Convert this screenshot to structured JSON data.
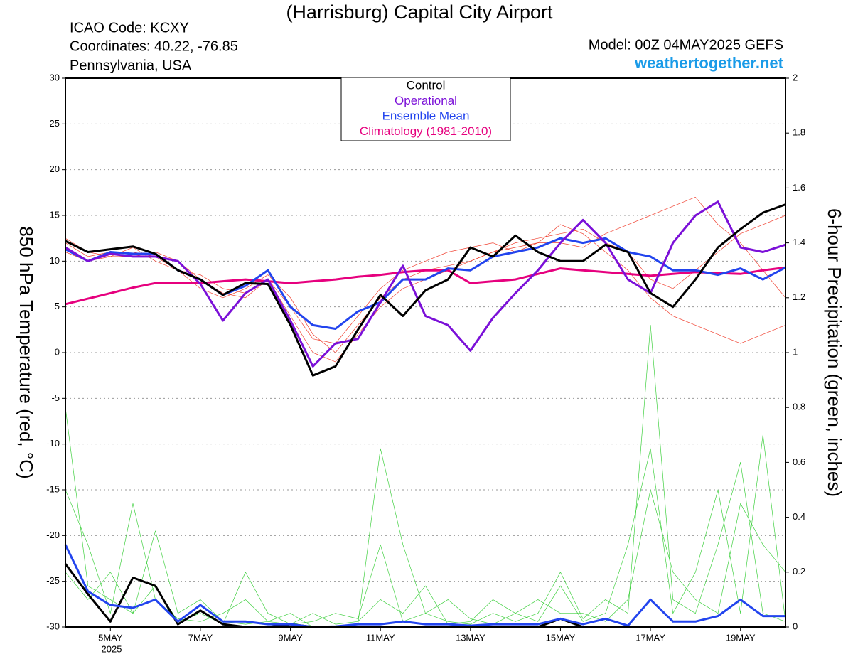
{
  "chart_data": {
    "type": "line",
    "title": "(Harrisburg) Capital City Airport",
    "info": [
      "ICAO Code: KCXY",
      "Coordinates: 40.22, -76.85",
      "Pennsylvania, USA"
    ],
    "model": "Model: 00Z 04MAY2025 GEFS",
    "source": "weathertogether.net",
    "y_label": "850 hPa Temperature (red, °C)",
    "y2_label": "6-hour Precipitation (green, inches)",
    "x_sublabel": "2025",
    "x": [
      0,
      0.5,
      1,
      1.5,
      2,
      2.5,
      3,
      3.5,
      4,
      4.5,
      5,
      5.5,
      6,
      6.5,
      7,
      7.5,
      8,
      8.5,
      9,
      9.5,
      10,
      10.5,
      11,
      11.5,
      12,
      12.5,
      13,
      13.5,
      14,
      14.5,
      15,
      15.5,
      16
    ],
    "xlim": [
      0,
      16
    ],
    "xticks": [
      {
        "value": 1,
        "label": "5MAY"
      },
      {
        "value": 3,
        "label": "7MAY"
      },
      {
        "value": 5,
        "label": "9MAY"
      },
      {
        "value": 7,
        "label": "11MAY"
      },
      {
        "value": 9,
        "label": "13MAY"
      },
      {
        "value": 11,
        "label": "15MAY"
      },
      {
        "value": 13,
        "label": "17MAY"
      },
      {
        "value": 15,
        "label": "19MAY"
      }
    ],
    "ylim": [
      -30,
      30
    ],
    "yticks": [
      -30,
      -25,
      -20,
      -15,
      -10,
      -5,
      0,
      5,
      10,
      15,
      20,
      25,
      30
    ],
    "y2lim": [
      0,
      2
    ],
    "y2ticks": [
      0,
      0.2,
      0.4,
      0.6,
      0.8,
      1,
      1.2,
      1.4,
      1.6,
      1.8,
      2
    ],
    "grid": true,
    "series": [
      {
        "name": "Control",
        "color": "#000000",
        "values": [
          12.2,
          11,
          11.3,
          11.6,
          10.8,
          9,
          8,
          6.3,
          7.6,
          7.5,
          3,
          -2.5,
          -1.5,
          2.5,
          6.3,
          4,
          6.8,
          8,
          11.5,
          10.5,
          12.8,
          11,
          10,
          10,
          11.8,
          11,
          6.5,
          5,
          8,
          11.5,
          13.5,
          15.3,
          16.2
        ]
      },
      {
        "name": "Operational",
        "color": "#7b10d8",
        "values": [
          11.5,
          10,
          10.8,
          10.5,
          10.5,
          10,
          7.5,
          3.5,
          6.5,
          8,
          3.5,
          -1.5,
          1,
          1.5,
          5.5,
          9.5,
          4,
          3,
          0.2,
          3.8,
          6.5,
          9,
          12,
          14.5,
          12,
          8,
          6.5,
          12,
          15,
          16.5,
          11.5,
          11,
          11.8
        ]
      },
      {
        "name": "Ensemble Mean",
        "color": "#2244ee",
        "values": [
          11.3,
          10,
          11,
          10.8,
          10.8,
          9,
          8,
          6.3,
          7.3,
          9,
          5,
          3,
          2.6,
          4.5,
          5.5,
          8,
          8,
          9.2,
          9,
          10.5,
          11,
          11.5,
          12.5,
          12,
          12.5,
          11,
          10.5,
          9,
          9,
          8.5,
          9.2,
          8,
          9.3
        ]
      },
      {
        "name": "Climatology (1981-2010)",
        "color": "#e6007e",
        "values": [
          5.3,
          5.9,
          6.5,
          7.1,
          7.6,
          7.6,
          7.6,
          7.8,
          8,
          7.8,
          7.6,
          7.8,
          8,
          8.3,
          8.5,
          8.8,
          9,
          9,
          7.6,
          7.8,
          8,
          8.6,
          9.2,
          9,
          8.8,
          8.6,
          8.4,
          8.6,
          8.8,
          8.7,
          8.6,
          9,
          9.3
        ]
      }
    ],
    "precip_series": [
      {
        "color": "#000000",
        "axis": "y2",
        "values": [
          0.23,
          0.12,
          0.02,
          0.18,
          0.15,
          0.01,
          0.06,
          0.01,
          0,
          0,
          0.01,
          0,
          0,
          0,
          0,
          0,
          0,
          0,
          0,
          0,
          0,
          0,
          0.03,
          0,
          0,
          0,
          0,
          0,
          0,
          0,
          0,
          0,
          0
        ]
      },
      {
        "color": "#2244ee",
        "axis": "y2",
        "values": [
          0.3,
          0.13,
          0.08,
          0.07,
          0.1,
          0.02,
          0.08,
          0.02,
          0.02,
          0.01,
          0.01,
          0,
          0.002,
          0.01,
          0.01,
          0.02,
          0.01,
          0.01,
          0.005,
          0.01,
          0.01,
          0.01,
          0.03,
          0.01,
          0.03,
          0.005,
          0.1,
          0.02,
          0.02,
          0.04,
          0.1,
          0.04,
          0.04
        ]
      }
    ],
    "members": [
      {
        "color": "#f04030",
        "values": [
          12,
          10.5,
          11,
          11,
          10.5,
          9,
          7,
          6,
          7,
          8.5,
          6,
          2,
          0,
          3,
          6,
          8,
          9,
          9.5,
          10,
          11,
          12,
          12.5,
          13,
          13.5,
          12,
          11,
          8,
          7,
          9,
          11,
          13,
          14,
          15
        ]
      },
      {
        "color": "#f04030",
        "values": [
          11,
          10,
          10.5,
          10.5,
          11,
          10,
          8,
          6.5,
          6,
          8,
          4,
          0,
          -1,
          2,
          5,
          7,
          8,
          9,
          10,
          11,
          11.5,
          12,
          14,
          13,
          11,
          9,
          6,
          4,
          3,
          2,
          1,
          2,
          3
        ]
      },
      {
        "color": "#f04030",
        "values": [
          12.5,
          11,
          10.5,
          11.5,
          10,
          9,
          8.5,
          7,
          6.5,
          8,
          5,
          1.5,
          1,
          4,
          7,
          9,
          10,
          11,
          11.5,
          12,
          11,
          12,
          12,
          11.5,
          13,
          14,
          15,
          16,
          17,
          14,
          12,
          9,
          6
        ]
      },
      {
        "color": "#40d040",
        "axis": "y2",
        "values": [
          0.8,
          0.15,
          0.1,
          0.05,
          0.35,
          0.05,
          0.1,
          0.02,
          0.01,
          0.02,
          0.05,
          0,
          0,
          0.01,
          0.65,
          0.3,
          0.05,
          0.02,
          0.01,
          0.05,
          0.02,
          0.05,
          0.2,
          0.03,
          0.1,
          0.05,
          1.1,
          0.1,
          0.05,
          0.3,
          0.6,
          0.05,
          0.02
        ]
      },
      {
        "color": "#40d040",
        "axis": "y2",
        "values": [
          0.5,
          0.3,
          0.05,
          0.45,
          0.1,
          0.03,
          0.02,
          0.05,
          0.1,
          0.02,
          0.01,
          0.05,
          0.01,
          0.02,
          0.1,
          0.05,
          0.15,
          0.01,
          0.02,
          0.1,
          0.05,
          0.02,
          0.15,
          0.02,
          0.05,
          0.3,
          0.65,
          0.05,
          0.2,
          0.5,
          0.05,
          0.7,
          0.02
        ]
      },
      {
        "color": "#40d040",
        "axis": "y2",
        "values": [
          0.2,
          0.1,
          0.2,
          0.05,
          0.15,
          0.02,
          0.05,
          0.01,
          0.2,
          0.05,
          0.01,
          0.02,
          0.05,
          0.03,
          0.3,
          0.02,
          0.05,
          0.1,
          0.03,
          0.01,
          0.05,
          0.1,
          0.05,
          0.05,
          0.02,
          0.1,
          0.5,
          0.2,
          0.1,
          0.05,
          0.45,
          0.3,
          0.2
        ]
      }
    ]
  }
}
